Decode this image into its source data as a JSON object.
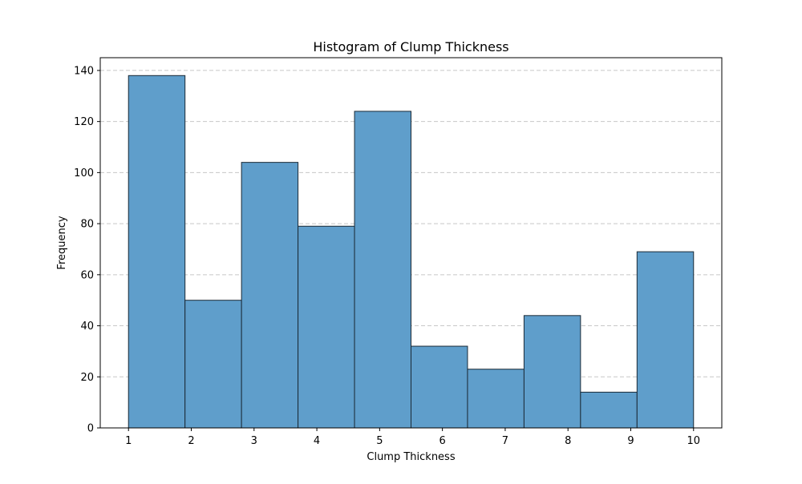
{
  "chart_data": {
    "type": "bar",
    "title": "Histogram of Clump Thickness",
    "xlabel": "Clump Thickness",
    "ylabel": "Frequency",
    "bins": [
      {
        "x0": 1.0,
        "x1": 1.9,
        "count": 138
      },
      {
        "x0": 1.9,
        "x1": 2.8,
        "count": 50
      },
      {
        "x0": 2.8,
        "x1": 3.7,
        "count": 104
      },
      {
        "x0": 3.7,
        "x1": 4.6,
        "count": 79
      },
      {
        "x0": 4.6,
        "x1": 5.5,
        "count": 124
      },
      {
        "x0": 5.5,
        "x1": 6.4,
        "count": 32
      },
      {
        "x0": 6.4,
        "x1": 7.3,
        "count": 23
      },
      {
        "x0": 7.3,
        "x1": 8.2,
        "count": 44
      },
      {
        "x0": 8.2,
        "x1": 9.1,
        "count": 14
      },
      {
        "x0": 9.1,
        "x1": 10.0,
        "count": 69
      }
    ],
    "xticks": [
      "1",
      "2",
      "3",
      "4",
      "5",
      "6",
      "7",
      "8",
      "9",
      "10"
    ],
    "yticks": [
      "0",
      "20",
      "40",
      "60",
      "80",
      "100",
      "120",
      "140"
    ],
    "xlim": [
      0.55,
      10.45
    ],
    "ylim": [
      0,
      145
    ],
    "grid": "y-dashed",
    "bar_color": "#5f9ecb",
    "edge_color": "#1b2a36",
    "grid_color": "#c8c8c8"
  }
}
